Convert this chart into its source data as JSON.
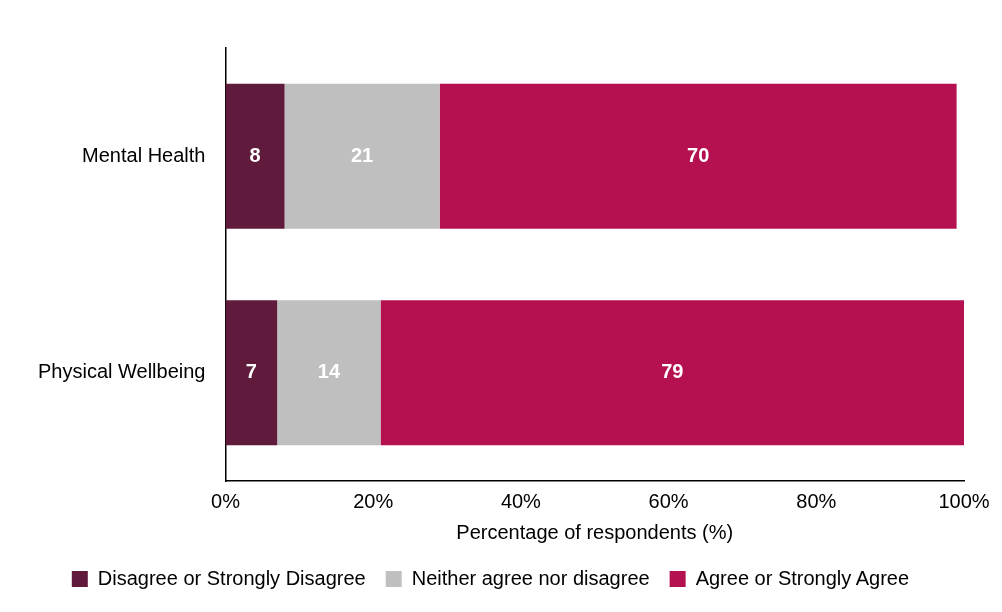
{
  "chart_data": {
    "type": "bar",
    "orientation": "horizontal",
    "stacked": true,
    "xlabel": "Percentage of respondents (%)",
    "categories": [
      "Mental Health",
      "Physical Wellbeing"
    ],
    "series": [
      {
        "name": "Disagree or Strongly Disagree",
        "color": "#5f1a3c",
        "values": [
          8,
          7
        ]
      },
      {
        "name": "Neither agree nor disagree",
        "color": "#bfbfbf",
        "values": [
          21,
          14
        ]
      },
      {
        "name": "Agree or Strongly Agree",
        "color": "#b5104f",
        "values": [
          70,
          79
        ]
      }
    ],
    "xlim": [
      0,
      100
    ],
    "xticks": [
      {
        "value": 0,
        "label": "0%"
      },
      {
        "value": 20,
        "label": "20%"
      },
      {
        "value": 40,
        "label": "40%"
      },
      {
        "value": 60,
        "label": "60%"
      },
      {
        "value": 80,
        "label": "80%"
      },
      {
        "value": 100,
        "label": "100%"
      }
    ],
    "data_labels": true,
    "grid": false,
    "legend": "bottom"
  }
}
